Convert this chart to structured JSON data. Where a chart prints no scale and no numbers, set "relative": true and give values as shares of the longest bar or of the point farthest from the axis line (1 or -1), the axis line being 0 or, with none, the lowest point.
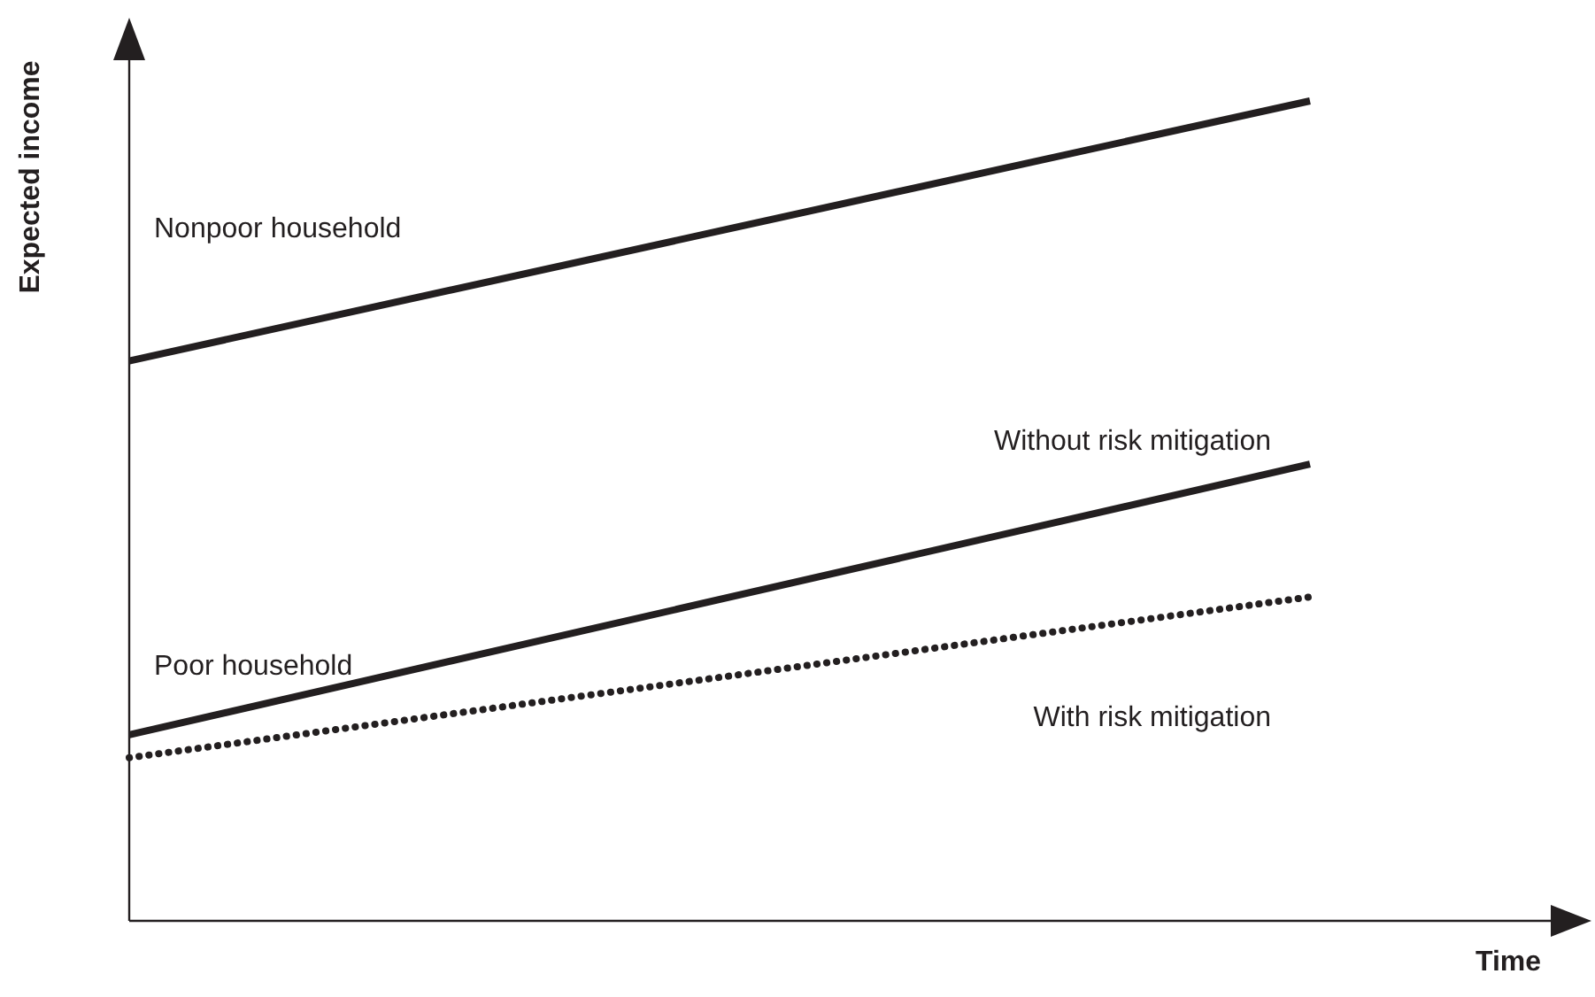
{
  "chart_data": {
    "type": "line",
    "relative": true,
    "xlabel": "Time",
    "ylabel": "Expected income",
    "categories": [
      null,
      null
    ],
    "grid": false,
    "legend": false,
    "annotations": [
      "Poor household"
    ],
    "series": [
      {
        "name": "Nonpoor household",
        "color": "#231f20",
        "values": [
          0.683,
          1
        ],
        "line_style": "solid"
      },
      {
        "name": "Without risk mitigation",
        "color": "#231f20",
        "values": [
          0.227,
          0.557
        ],
        "line_style": "solid"
      },
      {
        "name": "With risk mitigation",
        "color": "#231f20",
        "values": [
          0.199,
          0.395
        ],
        "line_style": "dotted"
      }
    ]
  }
}
